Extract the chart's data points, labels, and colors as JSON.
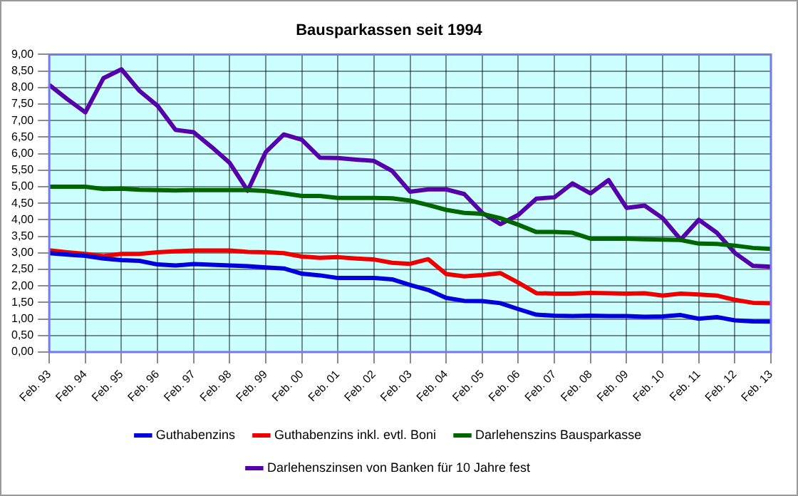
{
  "chart_data": {
    "type": "line",
    "title": "Bausparkassen seit 1994",
    "categories": [
      "Feb. 93",
      null,
      "Feb. 94",
      null,
      "Feb. 95",
      null,
      "Feb. 96",
      null,
      "Feb. 97",
      null,
      "Feb. 98",
      null,
      "Feb. 99",
      null,
      "Feb. 00",
      null,
      "Feb. 01",
      null,
      "Feb. 02",
      null,
      "Feb. 03",
      null,
      "Feb. 04",
      null,
      "Feb. 05",
      null,
      "Feb. 06",
      null,
      "Feb. 07",
      null,
      "Feb. 08",
      null,
      "Feb. 09",
      null,
      "Feb. 10",
      null,
      "Feb. 11",
      null,
      "Feb. 12",
      null,
      "Feb. 13"
    ],
    "series": [
      {
        "name": "Guthabenzins",
        "color": "#0000dd",
        "values": [
          2.99,
          2.95,
          2.91,
          2.83,
          2.78,
          2.76,
          2.65,
          2.62,
          2.66,
          2.64,
          2.62,
          2.6,
          2.56,
          2.53,
          2.37,
          2.32,
          2.24,
          2.24,
          2.24,
          2.2,
          2.03,
          1.88,
          1.64,
          1.55,
          1.54,
          1.48,
          1.3,
          1.13,
          1.1,
          1.09,
          1.1,
          1.09,
          1.09,
          1.07,
          1.08,
          1.12,
          1.01,
          1.06,
          0.96,
          0.93,
          0.92
        ]
      },
      {
        "name": "Guthabenzins inkl. evtl. Boni",
        "color": "#ee0000",
        "values": [
          3.08,
          3.02,
          2.97,
          2.9,
          2.97,
          2.97,
          3.02,
          3.05,
          3.07,
          3.07,
          3.07,
          3.03,
          3.02,
          2.99,
          2.89,
          2.85,
          2.87,
          2.83,
          2.8,
          2.7,
          2.67,
          2.81,
          2.36,
          2.29,
          2.33,
          2.39,
          2.1,
          1.78,
          1.77,
          1.77,
          1.79,
          1.78,
          1.77,
          1.78,
          1.71,
          1.77,
          1.74,
          1.71,
          1.58,
          1.49,
          1.48
        ]
      },
      {
        "name": "Darlehenszins Bausparkasse",
        "color": "#006600",
        "values": [
          5.0,
          5.0,
          5.0,
          4.93,
          4.94,
          4.91,
          4.9,
          4.89,
          4.9,
          4.9,
          4.9,
          4.9,
          4.87,
          4.8,
          4.72,
          4.72,
          4.66,
          4.66,
          4.66,
          4.65,
          4.58,
          4.45,
          4.3,
          4.21,
          4.18,
          4.05,
          3.85,
          3.63,
          3.63,
          3.61,
          3.43,
          3.43,
          3.43,
          3.41,
          3.4,
          3.39,
          3.28,
          3.27,
          3.22,
          3.15,
          3.12
        ]
      },
      {
        "name": "Darlehenszinsen von Banken für 10 Jahre fest",
        "color": "#5500aa",
        "values": [
          8.08,
          7.65,
          7.25,
          8.28,
          8.55,
          7.9,
          7.45,
          6.72,
          6.65,
          6.2,
          5.72,
          4.88,
          6.05,
          6.58,
          6.42,
          5.88,
          5.87,
          5.82,
          5.78,
          5.48,
          4.85,
          4.92,
          4.92,
          4.78,
          4.21,
          3.87,
          4.15,
          4.64,
          4.68,
          5.1,
          4.8,
          5.2,
          4.36,
          4.43,
          4.05,
          3.4,
          4.0,
          3.61,
          3.0,
          2.61,
          2.58
        ]
      }
    ],
    "ylim": [
      0,
      9
    ],
    "yticks": [
      {
        "value": 0,
        "label": "0,00"
      },
      {
        "value": 0.5,
        "label": "0,50"
      },
      {
        "value": 1,
        "label": "1,00"
      },
      {
        "value": 1.5,
        "label": "1,50"
      },
      {
        "value": 2,
        "label": "2,00"
      },
      {
        "value": 2.5,
        "label": "2,50"
      },
      {
        "value": 3,
        "label": "3,00"
      },
      {
        "value": 3.5,
        "label": "3,50"
      },
      {
        "value": 4,
        "label": "4,00"
      },
      {
        "value": 4.5,
        "label": "4,50"
      },
      {
        "value": 5,
        "label": "5,00"
      },
      {
        "value": 5.5,
        "label": "5,50"
      },
      {
        "value": 6,
        "label": "6,00"
      },
      {
        "value": 6.5,
        "label": "6,50"
      },
      {
        "value": 7,
        "label": "7,00"
      },
      {
        "value": 7.5,
        "label": "7,50"
      },
      {
        "value": 8,
        "label": "8,00"
      },
      {
        "value": 8.5,
        "label": "8,50"
      },
      {
        "value": 9,
        "label": "9,00"
      }
    ],
    "grid": true,
    "legend": "bottom",
    "marker": "none",
    "line_style": "solid"
  }
}
